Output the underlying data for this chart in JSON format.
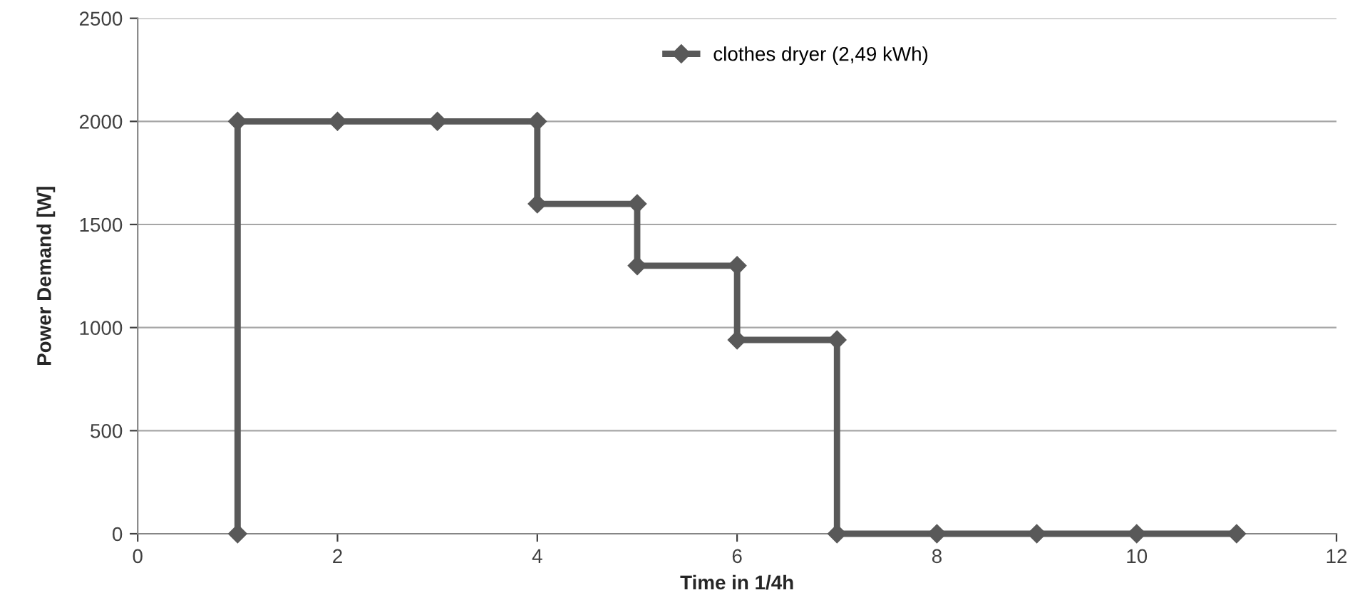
{
  "chart_data": {
    "type": "line",
    "xlabel": "Time in 1/4h",
    "ylabel": "Power Demand [W]",
    "series": [
      {
        "name": "clothes dryer (2,49 kWh)",
        "color": "#595959",
        "x": [
          1,
          1,
          2,
          3,
          4,
          4,
          5,
          5,
          6,
          6,
          7,
          7,
          8,
          9,
          10,
          11
        ],
        "values": [
          0,
          2000,
          2000,
          2000,
          2000,
          1600,
          1600,
          1300,
          1300,
          940,
          940,
          0,
          0,
          0,
          0,
          0
        ]
      }
    ],
    "xlim": [
      0,
      12
    ],
    "xticks": [
      0,
      2,
      4,
      6,
      8,
      10,
      12
    ],
    "ylim": [
      0,
      2500
    ],
    "yticks": [
      0,
      500,
      1000,
      1500,
      2000,
      2500
    ],
    "grid": "y",
    "legend": "top",
    "marker": "diamond",
    "line_style": "solid"
  }
}
